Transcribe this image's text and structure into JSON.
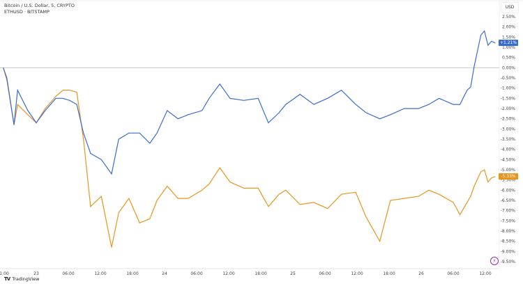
{
  "legend": {
    "line1": "Bitcoin / U.S. Dollar, 5, CRYPTO",
    "line2": "ETHUSD · BITSTAMP"
  },
  "currency": "USD",
  "brand": {
    "logo": "TV",
    "name": "TradingView"
  },
  "colors": {
    "btc": "#3a6bd1",
    "eth": "#e8951d",
    "zero_line": "#c8c8c8"
  },
  "icons": {
    "alert": "lightning-icon"
  },
  "chart_data": {
    "type": "line",
    "ylim": [
      -9.5,
      2.5
    ],
    "ylabel": "",
    "xlabel": "",
    "y_ticks": [
      "2.50%",
      "2.00%",
      "1.50%",
      "1.00%",
      "0.50%",
      "0.00%",
      "-0.50%",
      "-1.00%",
      "-1.50%",
      "-2.00%",
      "-2.50%",
      "-3.00%",
      "-3.50%",
      "-4.00%",
      "-4.50%",
      "-5.00%",
      "-5.50%",
      "-6.00%",
      "-6.50%",
      "-7.00%",
      "-7.50%",
      "-8.00%",
      "-8.50%",
      "-9.00%",
      "-9.50%"
    ],
    "x_ticks": [
      {
        "label": "1:00",
        "t": "22 18:00"
      },
      {
        "label": "23",
        "t": "23 00:00"
      },
      {
        "label": "06:00",
        "t": "23 06:00"
      },
      {
        "label": "12:00",
        "t": "23 12:00"
      },
      {
        "label": "18:00",
        "t": "23 18:00"
      },
      {
        "label": "24",
        "t": "24 00:00"
      },
      {
        "label": "06:00",
        "t": "24 06:00"
      },
      {
        "label": "12:00",
        "t": "24 12:00"
      },
      {
        "label": "18:00",
        "t": "24 18:00"
      },
      {
        "label": "25",
        "t": "25 00:00"
      },
      {
        "label": "06:00",
        "t": "25 06:00"
      },
      {
        "label": "12:00",
        "t": "25 12:00"
      },
      {
        "label": "18:00",
        "t": "25 18:00"
      },
      {
        "label": "26",
        "t": "26 00:00"
      },
      {
        "label": "06:00",
        "t": "26 06:00"
      },
      {
        "label": "12:00",
        "t": "26 12:00"
      }
    ],
    "x": [
      "22 17:50",
      "22 18:30",
      "22 19:50",
      "22 20:30",
      "22 22:25",
      "23 00:00",
      "23 01:40",
      "23 03:40",
      "23 05:00",
      "23 06:15",
      "23 07:35",
      "23 08:50",
      "23 10:10",
      "23 12:10",
      "23 14:05",
      "23 15:25",
      "23 17:20",
      "23 19:20",
      "23 21:15",
      "23 22:35",
      "24 00:30",
      "24 02:30",
      "24 04:25",
      "24 07:00",
      "24 08:20",
      "24 10:20",
      "24 12:15",
      "24 14:50",
      "24 17:30",
      "24 19:25",
      "24 21:25",
      "24 22:40",
      "25 01:20",
      "25 03:55",
      "25 06:30",
      "25 09:05",
      "25 11:45",
      "25 13:40",
      "25 16:15",
      "25 18:15",
      "25 20:50",
      "25 23:30",
      "26 01:25",
      "26 03:20",
      "26 06:00",
      "26 07:15",
      "26 08:35",
      "26 09:15",
      "26 09:55",
      "26 11:10",
      "26 11:50",
      "26 12:30",
      "26 13:10",
      "26 13:50"
    ],
    "series": [
      {
        "name": "Bitcoin / U.S. Dollar",
        "last_label": "+1.21%",
        "values": [
          0,
          -0.5,
          -2.8,
          -1.1,
          -2.1,
          -2.7,
          -2.1,
          -1.5,
          -1.5,
          -1.6,
          -1.8,
          -3.2,
          -4.2,
          -4.5,
          -5.2,
          -3.5,
          -3.2,
          -3.2,
          -3.7,
          -3.2,
          -2.1,
          -2.5,
          -2.3,
          -2.1,
          -1.5,
          -0.8,
          -1.5,
          -1.6,
          -1.5,
          -2.7,
          -2.2,
          -1.8,
          -1.3,
          -1.8,
          -1.5,
          -1.1,
          -1.8,
          -2.2,
          -2.5,
          -2.3,
          -2.0,
          -2.0,
          -1.8,
          -1.5,
          -1.8,
          -1.8,
          -1.1,
          -0.95,
          0.07,
          1.6,
          1.8,
          1.1,
          1.3,
          1.21
        ]
      },
      {
        "name": "ETHUSD",
        "last_label": "-5.33%",
        "values": [
          0,
          -0.6,
          -2.8,
          -1.8,
          -2.3,
          -2.7,
          -2.0,
          -1.4,
          -1.1,
          -1.1,
          -1.2,
          -3.5,
          -6.8,
          -6.3,
          -8.8,
          -7.1,
          -6.4,
          -7.6,
          -7.4,
          -6.5,
          -5.8,
          -6.4,
          -6.4,
          -6.0,
          -5.7,
          -4.9,
          -5.6,
          -5.9,
          -5.9,
          -6.8,
          -6.2,
          -6.0,
          -6.7,
          -6.6,
          -6.9,
          -6.2,
          -6.1,
          -7.3,
          -8.5,
          -6.5,
          -6.4,
          -6.3,
          -6.0,
          -6.2,
          -6.6,
          -7.2,
          -6.6,
          -6.3,
          -5.8,
          -5.1,
          -5.0,
          -5.6,
          -5.4,
          -5.33
        ]
      }
    ]
  }
}
